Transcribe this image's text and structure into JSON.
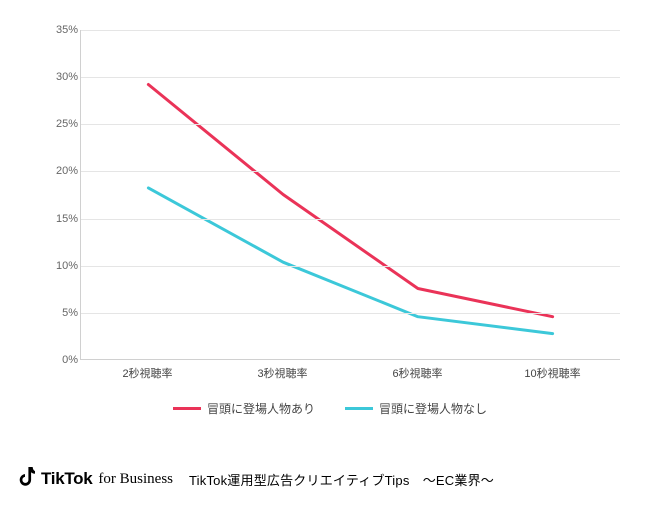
{
  "chart": {
    "type": "line",
    "background_color": "#ffffff",
    "grid_color": "#e5e5e5",
    "axis_color": "#d0d0d0",
    "ylim": [
      0,
      35
    ],
    "ytick_step": 5,
    "ytick_suffix": "%",
    "yticks": [
      0,
      5,
      10,
      15,
      20,
      25,
      30,
      35
    ],
    "categories": [
      "2秒視聴率",
      "3秒視聴率",
      "6秒視聴率",
      "10秒視聴率"
    ],
    "series": [
      {
        "name": "冒頭に登場人物あり",
        "color": "#ea3358",
        "line_width": 3,
        "values": [
          29.2,
          17.5,
          7.5,
          4.5
        ]
      },
      {
        "name": "冒頭に登場人物なし",
        "color": "#3cc8d9",
        "line_width": 3,
        "values": [
          18.2,
          10.3,
          4.5,
          2.7
        ]
      }
    ],
    "tick_fontsize": 11,
    "legend_fontsize": 12
  },
  "footer": {
    "brand_main": "TikTok",
    "brand_sub": "for Business",
    "subtitle": "TikTok運用型広告クリエイティブTips　〜EC業界〜"
  }
}
